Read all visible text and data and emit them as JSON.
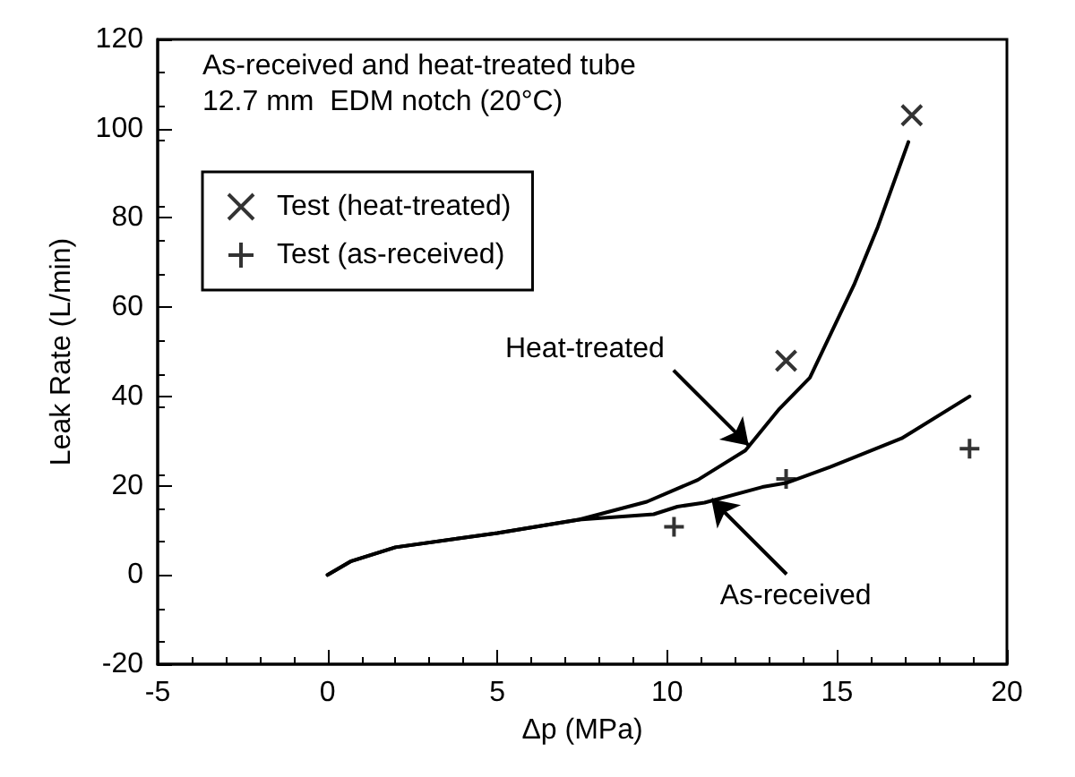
{
  "chart_data": {
    "type": "line",
    "title": "As-received and heat-treated tube",
    "subtitle": "12.7 mm  EDM notch (20°C)",
    "xlabel": "Δp (MPa)",
    "ylabel": "Leak Rate (L/min)",
    "xlim": [
      -5,
      20
    ],
    "xticks": [
      -5,
      0,
      5,
      10,
      15,
      20
    ],
    "ylim": [
      -20,
      120
    ],
    "yticks": [
      -20,
      0,
      20,
      40,
      60,
      80,
      100,
      120
    ],
    "grid": false,
    "legend": "top left",
    "series": [
      {
        "marker": "none",
        "color": "#000000",
        "x": [
          0,
          0.7,
          2,
          5,
          7.4,
          9.4,
          10.9,
          12.3,
          13.3,
          14.2,
          15.5,
          16.2,
          17.1
        ],
        "values": [
          0,
          3.1,
          6.2,
          9.4,
          12.4,
          16.4,
          21.3,
          27.9,
          37.2,
          44.2,
          65,
          78,
          97
        ]
      },
      {
        "marker": "none",
        "color": "#000000",
        "x": [
          0,
          0.7,
          2,
          5,
          7.4,
          9.6,
          10.3,
          11.1,
          12.8,
          13.5,
          14.8,
          16.9,
          18.9
        ],
        "values": [
          0,
          3.1,
          6.2,
          9.4,
          12.4,
          13.6,
          15.3,
          16.2,
          19.7,
          20.6,
          24.2,
          30.6,
          40
        ]
      },
      {
        "type": "scatter",
        "name": "Test (heat-treated)",
        "marker": "cross",
        "color": "#000000",
        "x": [
          13.5,
          17.2
        ],
        "values": [
          48,
          103
        ]
      },
      {
        "type": "scatter",
        "name": "Test (as-received)",
        "marker": "plus",
        "color": "#000000",
        "x": [
          10.2,
          13.5,
          18.9
        ],
        "values": [
          10.8,
          21.5,
          28.3
        ]
      }
    ],
    "annotations": [
      {
        "text": "Heat-treated",
        "x": 12.4,
        "y": 29
      },
      {
        "text": "As-received",
        "x": 11.3,
        "y": 17
      }
    ]
  }
}
